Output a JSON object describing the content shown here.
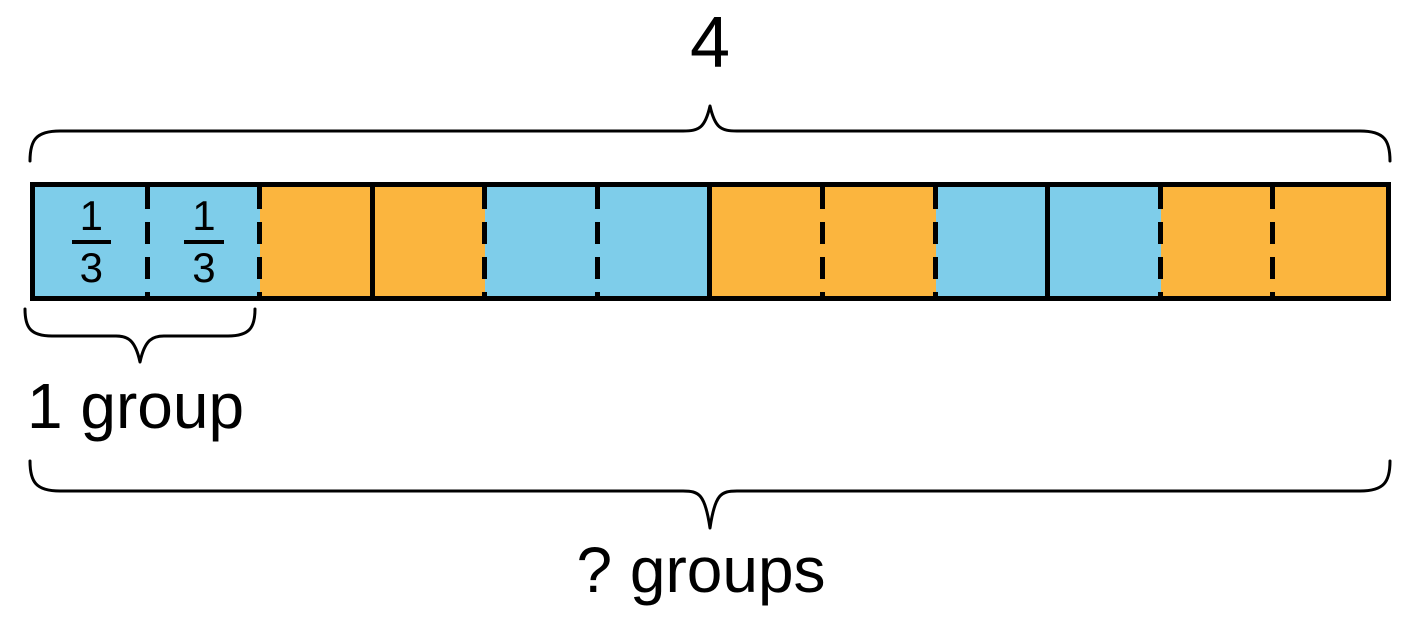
{
  "diagram": {
    "total_label": "4",
    "group_label": "1 group",
    "question_label": "? groups",
    "colors": {
      "blue": "#7ECDEA",
      "orange": "#FBB53E",
      "line": "#000000"
    },
    "bar": {
      "cells": [
        {
          "color": "blue",
          "fraction": {
            "num": "1",
            "den": "3"
          }
        },
        {
          "color": "blue",
          "fraction": {
            "num": "1",
            "den": "3"
          }
        },
        {
          "color": "orange",
          "fraction": null
        },
        {
          "color": "orange",
          "fraction": null
        },
        {
          "color": "blue",
          "fraction": null
        },
        {
          "color": "blue",
          "fraction": null
        },
        {
          "color": "orange",
          "fraction": null
        },
        {
          "color": "orange",
          "fraction": null
        },
        {
          "color": "blue",
          "fraction": null
        },
        {
          "color": "blue",
          "fraction": null
        },
        {
          "color": "orange",
          "fraction": null
        },
        {
          "color": "orange",
          "fraction": null
        }
      ],
      "solid_dividers_after_cell": [
        3,
        6,
        9
      ]
    }
  }
}
